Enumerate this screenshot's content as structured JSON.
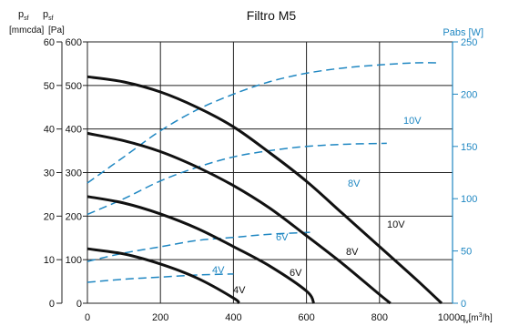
{
  "chart_data": {
    "type": "line",
    "title": "Filtro M5",
    "left_axis": {
      "label_top": [
        "p",
        "sf",
        "p",
        "sf"
      ],
      "unit_mmcda": "[mmcda]",
      "unit_pa": "[Pa]",
      "pa_ticks": [
        "0",
        "100",
        "200",
        "300",
        "400",
        "500",
        "600"
      ],
      "mmcda_ticks": [
        "0",
        "10",
        "20",
        "30",
        "40",
        "50",
        "60"
      ],
      "ylim": [
        0,
        600
      ]
    },
    "right_axis": {
      "label": "Pabs [W]",
      "ticks": [
        "0",
        "50",
        "100",
        "150",
        "200",
        "250"
      ],
      "ylim": [
        0,
        250
      ]
    },
    "x_axis": {
      "ticks": [
        "0",
        "200",
        "400",
        "600",
        "800",
        "1000"
      ],
      "label": "q",
      "label_sub": "v",
      "label_unit": "[m",
      "label_sup": "3",
      "label_unit_end": "/h]",
      "xlim": [
        0,
        1000
      ]
    },
    "grid": true,
    "pressure_series": [
      {
        "name": "10V",
        "x": [
          0,
          100,
          200,
          300,
          400,
          500,
          600,
          700,
          800,
          900,
          970
        ],
        "y": [
          520,
          508,
          485,
          450,
          405,
          345,
          280,
          205,
          130,
          55,
          0
        ]
      },
      {
        "name": "8V",
        "x": [
          0,
          100,
          200,
          300,
          400,
          500,
          600,
          700,
          800,
          830
        ],
        "y": [
          390,
          373,
          348,
          313,
          270,
          218,
          155,
          90,
          20,
          0
        ]
      },
      {
        "name": "6V",
        "x": [
          0,
          100,
          200,
          300,
          400,
          500,
          600,
          620
        ],
        "y": [
          245,
          230,
          205,
          172,
          130,
          85,
          28,
          0
        ]
      },
      {
        "name": "4V",
        "x": [
          0,
          100,
          200,
          300,
          400,
          415
        ],
        "y": [
          125,
          113,
          90,
          58,
          12,
          0
        ]
      }
    ],
    "power_series": [
      {
        "name": "10V",
        "x": [
          0,
          100,
          200,
          300,
          400,
          500,
          600,
          700,
          800,
          900,
          960
        ],
        "y": [
          115,
          140,
          165,
          185,
          200,
          212,
          220,
          225,
          228,
          230,
          230
        ]
      },
      {
        "name": "8V",
        "x": [
          0,
          100,
          200,
          300,
          400,
          500,
          600,
          700,
          820
        ],
        "y": [
          85,
          100,
          117,
          130,
          140,
          146,
          150,
          152,
          153
        ]
      },
      {
        "name": "6V",
        "x": [
          0,
          100,
          200,
          300,
          400,
          500,
          620
        ],
        "y": [
          40,
          48,
          54,
          60,
          63,
          66,
          68
        ]
      },
      {
        "name": "4V",
        "x": [
          0,
          100,
          200,
          300,
          400
        ],
        "y": [
          20,
          23,
          25,
          27,
          28
        ]
      }
    ],
    "pressure_labels": [
      "10V",
      "8V",
      "6V",
      "4V"
    ],
    "power_labels": [
      "10V",
      "8V",
      "6V",
      "4V"
    ],
    "colors": {
      "pressure": "#111111",
      "power": "#1f87c2",
      "grid": "#222222"
    }
  }
}
